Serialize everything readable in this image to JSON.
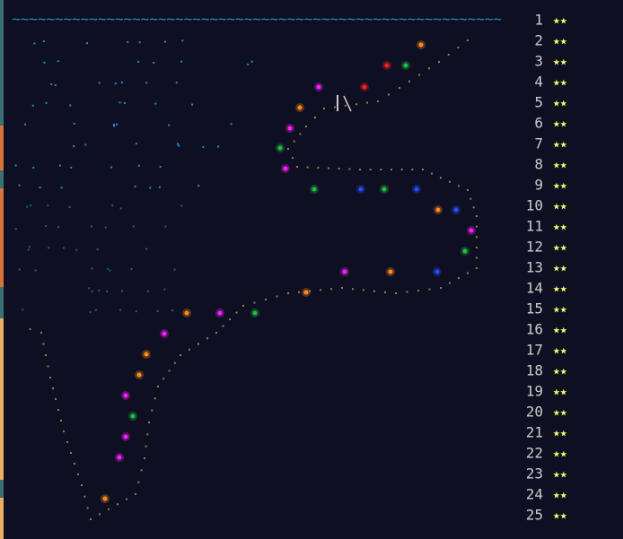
{
  "header": {
    "waves": "~~~~~~~~~~~~~~~~~~~~~~~~~~~~~~~~~~~~~~~~~~~~~~~~~~~~~~~~~"
  },
  "days": [
    {
      "day": "1",
      "stars": "★★"
    },
    {
      "day": "2",
      "stars": "★★"
    },
    {
      "day": "3",
      "stars": "★★"
    },
    {
      "day": "4",
      "stars": "★★"
    },
    {
      "day": "5",
      "stars": "★★"
    },
    {
      "day": "6",
      "stars": "★★"
    },
    {
      "day": "7",
      "stars": "★★"
    },
    {
      "day": "8",
      "stars": "★★"
    },
    {
      "day": "9",
      "stars": "★★"
    },
    {
      "day": "10",
      "stars": "★★"
    },
    {
      "day": "11",
      "stars": "★★"
    },
    {
      "day": "12",
      "stars": "★★"
    },
    {
      "day": "13",
      "stars": "★★"
    },
    {
      "day": "14",
      "stars": "★★"
    },
    {
      "day": "15",
      "stars": "★★"
    },
    {
      "day": "16",
      "stars": "★★"
    },
    {
      "day": "17",
      "stars": "★★"
    },
    {
      "day": "18",
      "stars": "★★"
    },
    {
      "day": "19",
      "stars": "★★"
    },
    {
      "day": "20",
      "stars": "★★"
    },
    {
      "day": "21",
      "stars": "★★"
    },
    {
      "day": "22",
      "stars": "★★"
    },
    {
      "day": "23",
      "stars": "★★"
    },
    {
      "day": "24",
      "stars": "★★"
    },
    {
      "day": "25",
      "stars": "★★"
    }
  ]
}
